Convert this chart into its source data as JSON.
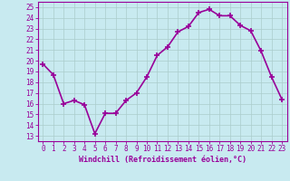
{
  "x": [
    0,
    1,
    2,
    3,
    4,
    5,
    6,
    7,
    8,
    9,
    10,
    11,
    12,
    13,
    14,
    15,
    16,
    17,
    18,
    19,
    20,
    21,
    22,
    23
  ],
  "y": [
    19.7,
    18.7,
    16.0,
    16.3,
    15.9,
    13.2,
    15.1,
    15.1,
    16.3,
    17.0,
    18.5,
    20.5,
    21.3,
    22.7,
    23.2,
    24.5,
    24.8,
    24.2,
    24.2,
    23.3,
    22.8,
    20.9,
    18.5,
    16.4
  ],
  "line_color": "#990099",
  "marker": "+",
  "marker_size": 4,
  "linewidth": 1.2,
  "bg_color": "#c8eaf0",
  "grid_color": "#aacccc",
  "axis_color": "#990099",
  "tick_color": "#990099",
  "xlabel": "Windchill (Refroidissement éolien,°C)",
  "xlabel_fontsize": 6,
  "ylabel_ticks": [
    13,
    14,
    15,
    16,
    17,
    18,
    19,
    20,
    21,
    22,
    23,
    24,
    25
  ],
  "xlim": [
    -0.5,
    23.5
  ],
  "ylim": [
    12.5,
    25.5
  ],
  "tick_fontsize": 5.5
}
